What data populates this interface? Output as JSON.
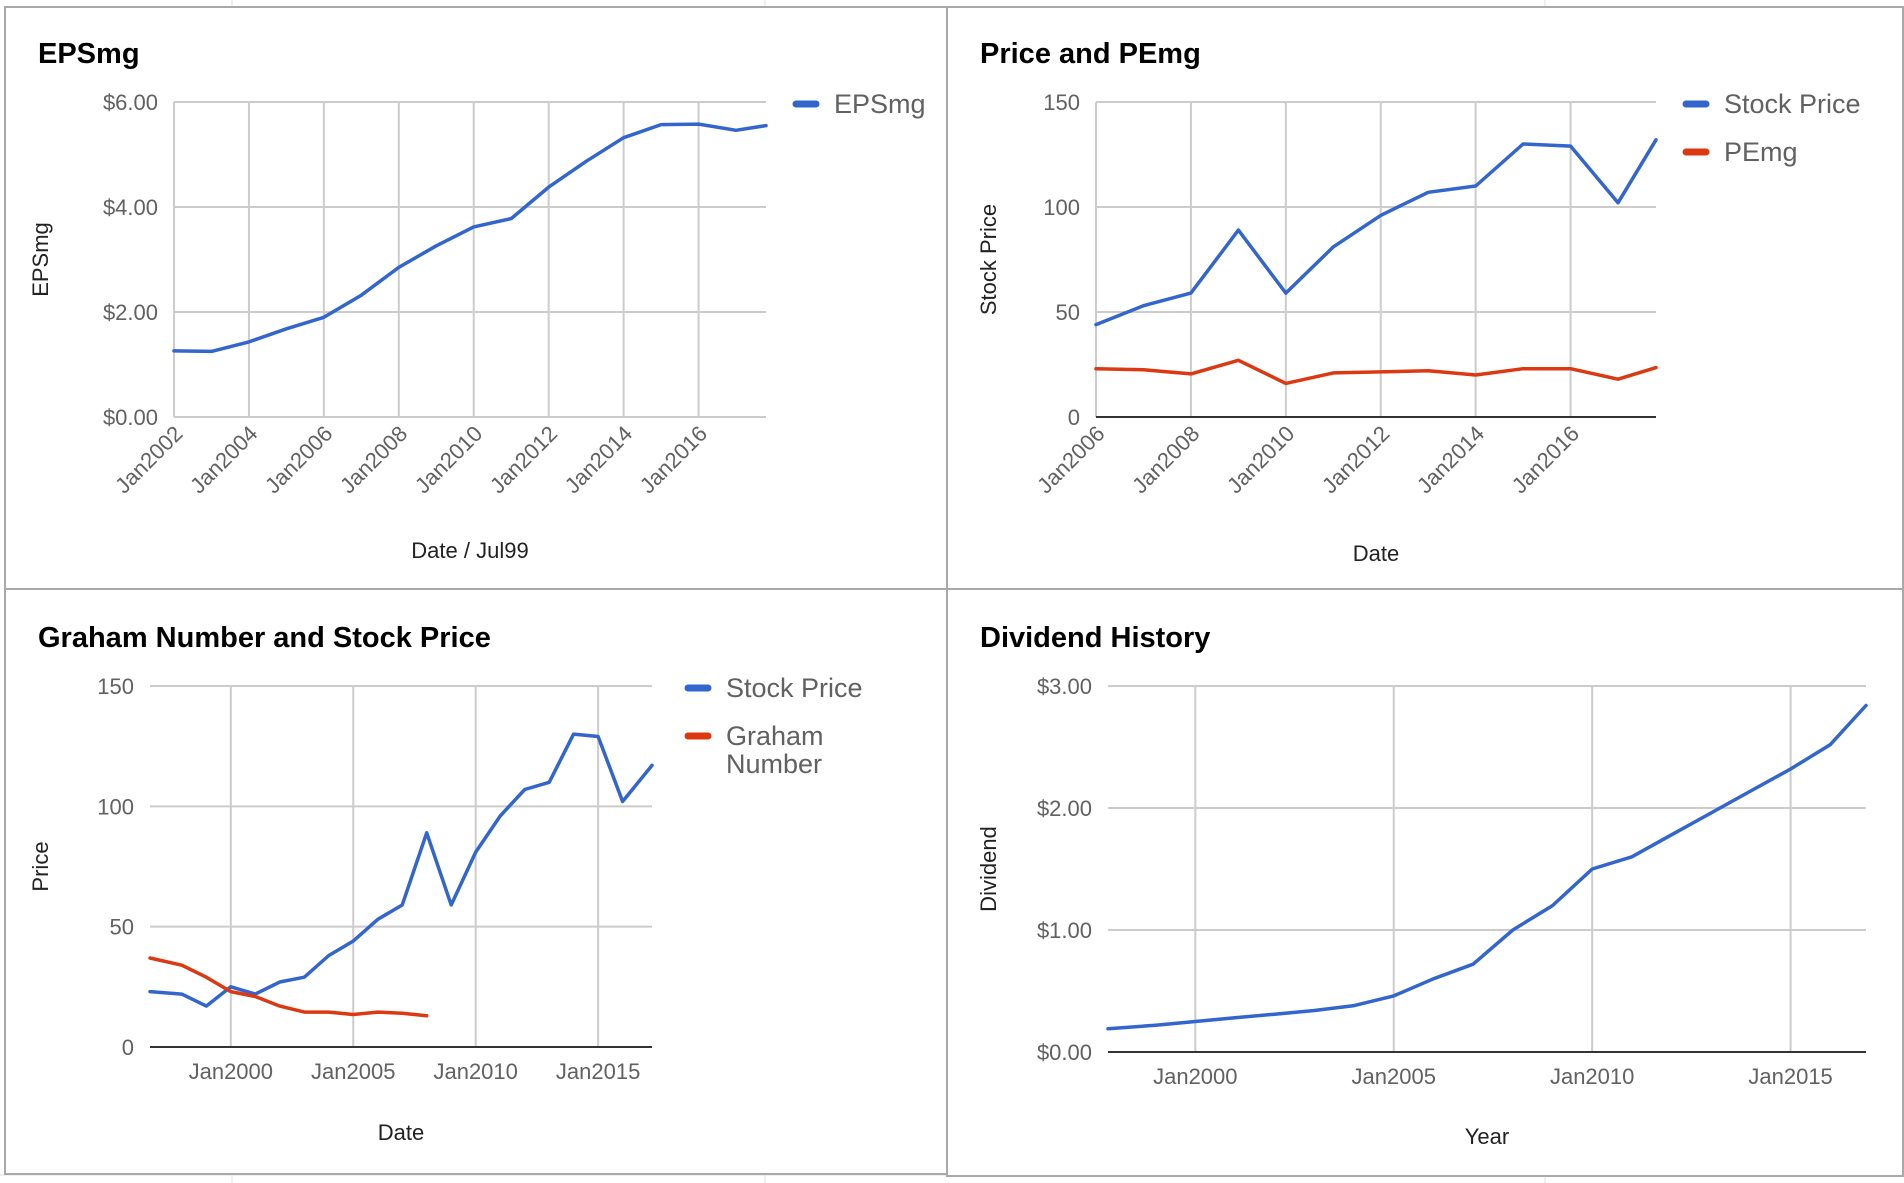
{
  "colors": {
    "blue": "#3366cc",
    "red": "#dc3912",
    "grid": "#cccccc",
    "border": "#a9a9a9"
  },
  "chart_data": [
    {
      "id": "epsmg",
      "type": "line",
      "title": "EPSmg",
      "xlabel": "Date / Jul99",
      "ylabel": "EPSmg",
      "xlim": [
        2002,
        2017.8
      ],
      "ylim": [
        0,
        6
      ],
      "x_ticks": [
        2002,
        2004,
        2006,
        2008,
        2010,
        2012,
        2014,
        2016
      ],
      "x_tick_labels": [
        "Jan2002",
        "Jan2004",
        "Jan2006",
        "Jan2008",
        "Jan2010",
        "Jan2012",
        "Jan2014",
        "Jan2016"
      ],
      "y_ticks": [
        0,
        2,
        4,
        6
      ],
      "y_tick_labels": [
        "$0.00",
        "$2.00",
        "$4.00",
        "$6.00"
      ],
      "grid": true,
      "legend": "right",
      "series": [
        {
          "name": "EPSmg",
          "color": "#3366cc",
          "x": [
            2002,
            2003,
            2004,
            2005,
            2006,
            2007,
            2008,
            2009,
            2010,
            2011,
            2012,
            2013,
            2014,
            2015,
            2016,
            2017,
            2017.8
          ],
          "y": [
            1.26,
            1.25,
            1.43,
            1.68,
            1.9,
            2.32,
            2.85,
            3.26,
            3.62,
            3.78,
            4.38,
            4.87,
            5.32,
            5.57,
            5.58,
            5.46,
            5.55
          ]
        }
      ]
    },
    {
      "id": "price-pemg",
      "type": "line",
      "title": "Price and PEmg",
      "xlabel": "Date",
      "ylabel": "Stock Price",
      "xlim": [
        2006,
        2017.8
      ],
      "ylim": [
        0,
        150
      ],
      "x_ticks": [
        2006,
        2008,
        2010,
        2012,
        2014,
        2016
      ],
      "x_tick_labels": [
        "Jan2006",
        "Jan2008",
        "Jan2010",
        "Jan2012",
        "Jan2014",
        "Jan2016"
      ],
      "y_ticks": [
        0,
        50,
        100,
        150
      ],
      "y_tick_labels": [
        "0",
        "50",
        "100",
        "150"
      ],
      "grid": true,
      "legend": "right",
      "series": [
        {
          "name": "Stock Price",
          "color": "#3366cc",
          "x": [
            2006,
            2007,
            2008,
            2009,
            2010,
            2011,
            2012,
            2013,
            2014,
            2015,
            2016,
            2017,
            2017.8
          ],
          "y": [
            44,
            53,
            59,
            89,
            59,
            81,
            96,
            107,
            110,
            130,
            129,
            102,
            132
          ]
        },
        {
          "name": "PEmg",
          "color": "#dc3912",
          "x": [
            2006,
            2007,
            2008,
            2009,
            2010,
            2011,
            2012,
            2013,
            2014,
            2015,
            2016,
            2017,
            2017.8
          ],
          "y": [
            23,
            22.5,
            20.5,
            27,
            16,
            21,
            21.5,
            22,
            20,
            23,
            23,
            18,
            23.5
          ]
        }
      ]
    },
    {
      "id": "graham",
      "type": "line",
      "title": "Graham Number and Stock Price",
      "xlabel": "Date",
      "ylabel": "Price",
      "xlim": [
        1996.7,
        2017.2
      ],
      "ylim": [
        0,
        150
      ],
      "x_ticks": [
        2000,
        2005,
        2010,
        2015
      ],
      "x_tick_labels": [
        "Jan2000",
        "Jan2005",
        "Jan2010",
        "Jan2015"
      ],
      "y_ticks": [
        0,
        50,
        100,
        150
      ],
      "y_tick_labels": [
        "0",
        "50",
        "100",
        "150"
      ],
      "grid": true,
      "legend": "right",
      "series": [
        {
          "name": "Stock Price",
          "color": "#3366cc",
          "x": [
            1996.7,
            1998,
            1999,
            2000,
            2001,
            2002,
            2003,
            2004,
            2005,
            2006,
            2007,
            2008,
            2009,
            2010,
            2011,
            2012,
            2013,
            2014,
            2015,
            2016,
            2017.2
          ],
          "y": [
            23,
            22,
            17,
            25,
            22,
            27,
            29,
            38,
            44,
            53,
            59,
            89,
            59,
            81,
            96,
            107,
            110,
            130,
            129,
            102,
            117
          ]
        },
        {
          "name": "Graham Number",
          "color": "#dc3912",
          "x": [
            1996.7,
            1998,
            1999,
            2000,
            2001,
            2002,
            2003,
            2004,
            2005,
            2006,
            2007,
            2008
          ],
          "y": [
            37,
            34,
            29,
            23,
            21,
            17,
            14.5,
            14.5,
            13.5,
            14.5,
            14,
            13
          ]
        }
      ]
    },
    {
      "id": "dividend",
      "type": "line",
      "title": "Dividend History",
      "xlabel": "Year",
      "ylabel": "Dividend",
      "xlim": [
        1997.8,
        2016.9
      ],
      "ylim": [
        0,
        3
      ],
      "x_ticks": [
        2000,
        2005,
        2010,
        2015
      ],
      "x_tick_labels": [
        "Jan2000",
        "Jan2005",
        "Jan2010",
        "Jan2015"
      ],
      "y_ticks": [
        0,
        1,
        2,
        3
      ],
      "y_tick_labels": [
        "$0.00",
        "$1.00",
        "$2.00",
        "$3.00"
      ],
      "grid": true,
      "legend": "none",
      "series": [
        {
          "name": "",
          "color": "#3366cc",
          "x": [
            1997.8,
            1999,
            2000,
            2001,
            2002,
            2003,
            2004,
            2005,
            2006,
            2007,
            2008,
            2009,
            2010,
            2011,
            2012,
            2013,
            2014,
            2015,
            2016,
            2016.9
          ],
          "y": [
            0.19,
            0.22,
            0.25,
            0.28,
            0.31,
            0.34,
            0.38,
            0.46,
            0.6,
            0.72,
            1.0,
            1.2,
            1.5,
            1.6,
            1.78,
            1.96,
            2.14,
            2.32,
            2.52,
            2.84
          ]
        }
      ]
    }
  ]
}
